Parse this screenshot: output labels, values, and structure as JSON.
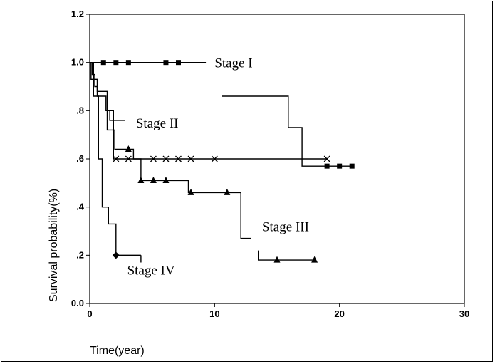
{
  "chart_data": {
    "type": "line",
    "title": "",
    "xlabel": "Time(year)",
    "ylabel": "Survival probability(%)",
    "xlim": [
      0,
      30
    ],
    "ylim": [
      0,
      1.2
    ],
    "x_ticks": [
      {
        "v": 0,
        "label": "0"
      },
      {
        "v": 10,
        "label": "10"
      },
      {
        "v": 20,
        "label": "20"
      },
      {
        "v": 30,
        "label": "30"
      }
    ],
    "y_ticks": [
      {
        "v": 0,
        "label": "0.0"
      },
      {
        "v": 0.2,
        "label": ".2"
      },
      {
        "v": 0.4,
        "label": ".4"
      },
      {
        "v": 0.6,
        "label": ".6"
      },
      {
        "v": 0.8,
        "label": ".8"
      },
      {
        "v": 1.0,
        "label": "1.0"
      },
      {
        "v": 1.2,
        "label": "1.2"
      }
    ],
    "grid": false,
    "series": [
      {
        "name": "Stage I",
        "marker": "square",
        "steps": [
          [
            0,
            1.0
          ],
          [
            9.3,
            1.0
          ]
        ],
        "steps_extra": [
          [
            10.6,
            0.86
          ],
          [
            15.9,
            0.86
          ],
          [
            15.9,
            0.73
          ],
          [
            17.0,
            0.73
          ],
          [
            17.0,
            0.57
          ],
          [
            21.0,
            0.57
          ]
        ],
        "censored": [
          [
            1.1,
            1.0
          ],
          [
            2.1,
            1.0
          ],
          [
            3.1,
            1.0
          ],
          [
            6.1,
            1.0
          ],
          [
            7.1,
            1.0
          ],
          [
            19.0,
            0.57
          ],
          [
            20.0,
            0.57
          ],
          [
            21.0,
            0.57
          ]
        ],
        "label_pos": [
          10.0,
          0.98
        ]
      },
      {
        "name": "Stage II",
        "marker": "x",
        "steps": [
          [
            0,
            1.0
          ],
          [
            0.2,
            1.0
          ],
          [
            0.2,
            0.95
          ],
          [
            0.4,
            0.95
          ],
          [
            0.4,
            0.9
          ],
          [
            0.6,
            0.9
          ],
          [
            0.6,
            0.86
          ],
          [
            1.3,
            0.86
          ],
          [
            1.3,
            0.8
          ],
          [
            1.9,
            0.8
          ],
          [
            1.9,
            0.6
          ],
          [
            19.0,
            0.6
          ]
        ],
        "steps_extra": [
          [
            1.3,
            0.8
          ],
          [
            1.6,
            0.8
          ],
          [
            1.6,
            0.76
          ],
          [
            2.8,
            0.76
          ]
        ],
        "censored": [
          [
            2.1,
            0.6
          ],
          [
            3.1,
            0.6
          ],
          [
            5.1,
            0.6
          ],
          [
            6.1,
            0.6
          ],
          [
            7.1,
            0.6
          ],
          [
            8.1,
            0.6
          ],
          [
            10.0,
            0.6
          ],
          [
            19.0,
            0.6
          ]
        ],
        "label_pos": [
          3.7,
          0.73
        ]
      },
      {
        "name": "Stage III",
        "marker": "triangle",
        "steps": [
          [
            0,
            1.0
          ],
          [
            0.3,
            1.0
          ],
          [
            0.3,
            0.93
          ],
          [
            0.6,
            0.93
          ],
          [
            0.6,
            0.88
          ],
          [
            1.4,
            0.88
          ],
          [
            1.4,
            0.72
          ],
          [
            2.0,
            0.72
          ],
          [
            2.0,
            0.64
          ],
          [
            3.5,
            0.64
          ],
          [
            3.5,
            0.6
          ],
          [
            4.1,
            0.6
          ],
          [
            4.1,
            0.51
          ],
          [
            7.9,
            0.51
          ],
          [
            7.9,
            0.46
          ],
          [
            11.0,
            0.46
          ],
          [
            12.1,
            0.46
          ],
          [
            12.1,
            0.27
          ],
          [
            12.9,
            0.27
          ]
        ],
        "steps_extra": [
          [
            13.5,
            0.22
          ],
          [
            13.5,
            0.18
          ],
          [
            18.0,
            0.18
          ]
        ],
        "censored": [
          [
            3.1,
            0.64
          ],
          [
            4.1,
            0.51
          ],
          [
            5.1,
            0.51
          ],
          [
            6.1,
            0.51
          ],
          [
            8.1,
            0.46
          ],
          [
            11.0,
            0.46
          ],
          [
            15.0,
            0.18
          ],
          [
            18.0,
            0.18
          ]
        ],
        "label_pos": [
          13.8,
          0.3
        ]
      },
      {
        "name": "Stage IV",
        "marker": "diamond",
        "steps": [
          [
            0,
            1.0
          ],
          [
            0.1,
            1.0
          ],
          [
            0.1,
            0.93
          ],
          [
            0.3,
            0.93
          ],
          [
            0.3,
            0.86
          ],
          [
            0.7,
            0.86
          ],
          [
            0.7,
            0.6
          ],
          [
            1.0,
            0.6
          ],
          [
            1.0,
            0.4
          ],
          [
            1.5,
            0.4
          ],
          [
            1.5,
            0.33
          ],
          [
            2.1,
            0.33
          ],
          [
            2.1,
            0.2
          ],
          [
            4.1,
            0.2
          ]
        ],
        "steps_extra": [
          [
            4.1,
            0.2
          ],
          [
            4.1,
            0.17
          ]
        ],
        "censored": [
          [
            2.1,
            0.2
          ]
        ],
        "label_pos": [
          3.0,
          0.12
        ]
      }
    ]
  }
}
